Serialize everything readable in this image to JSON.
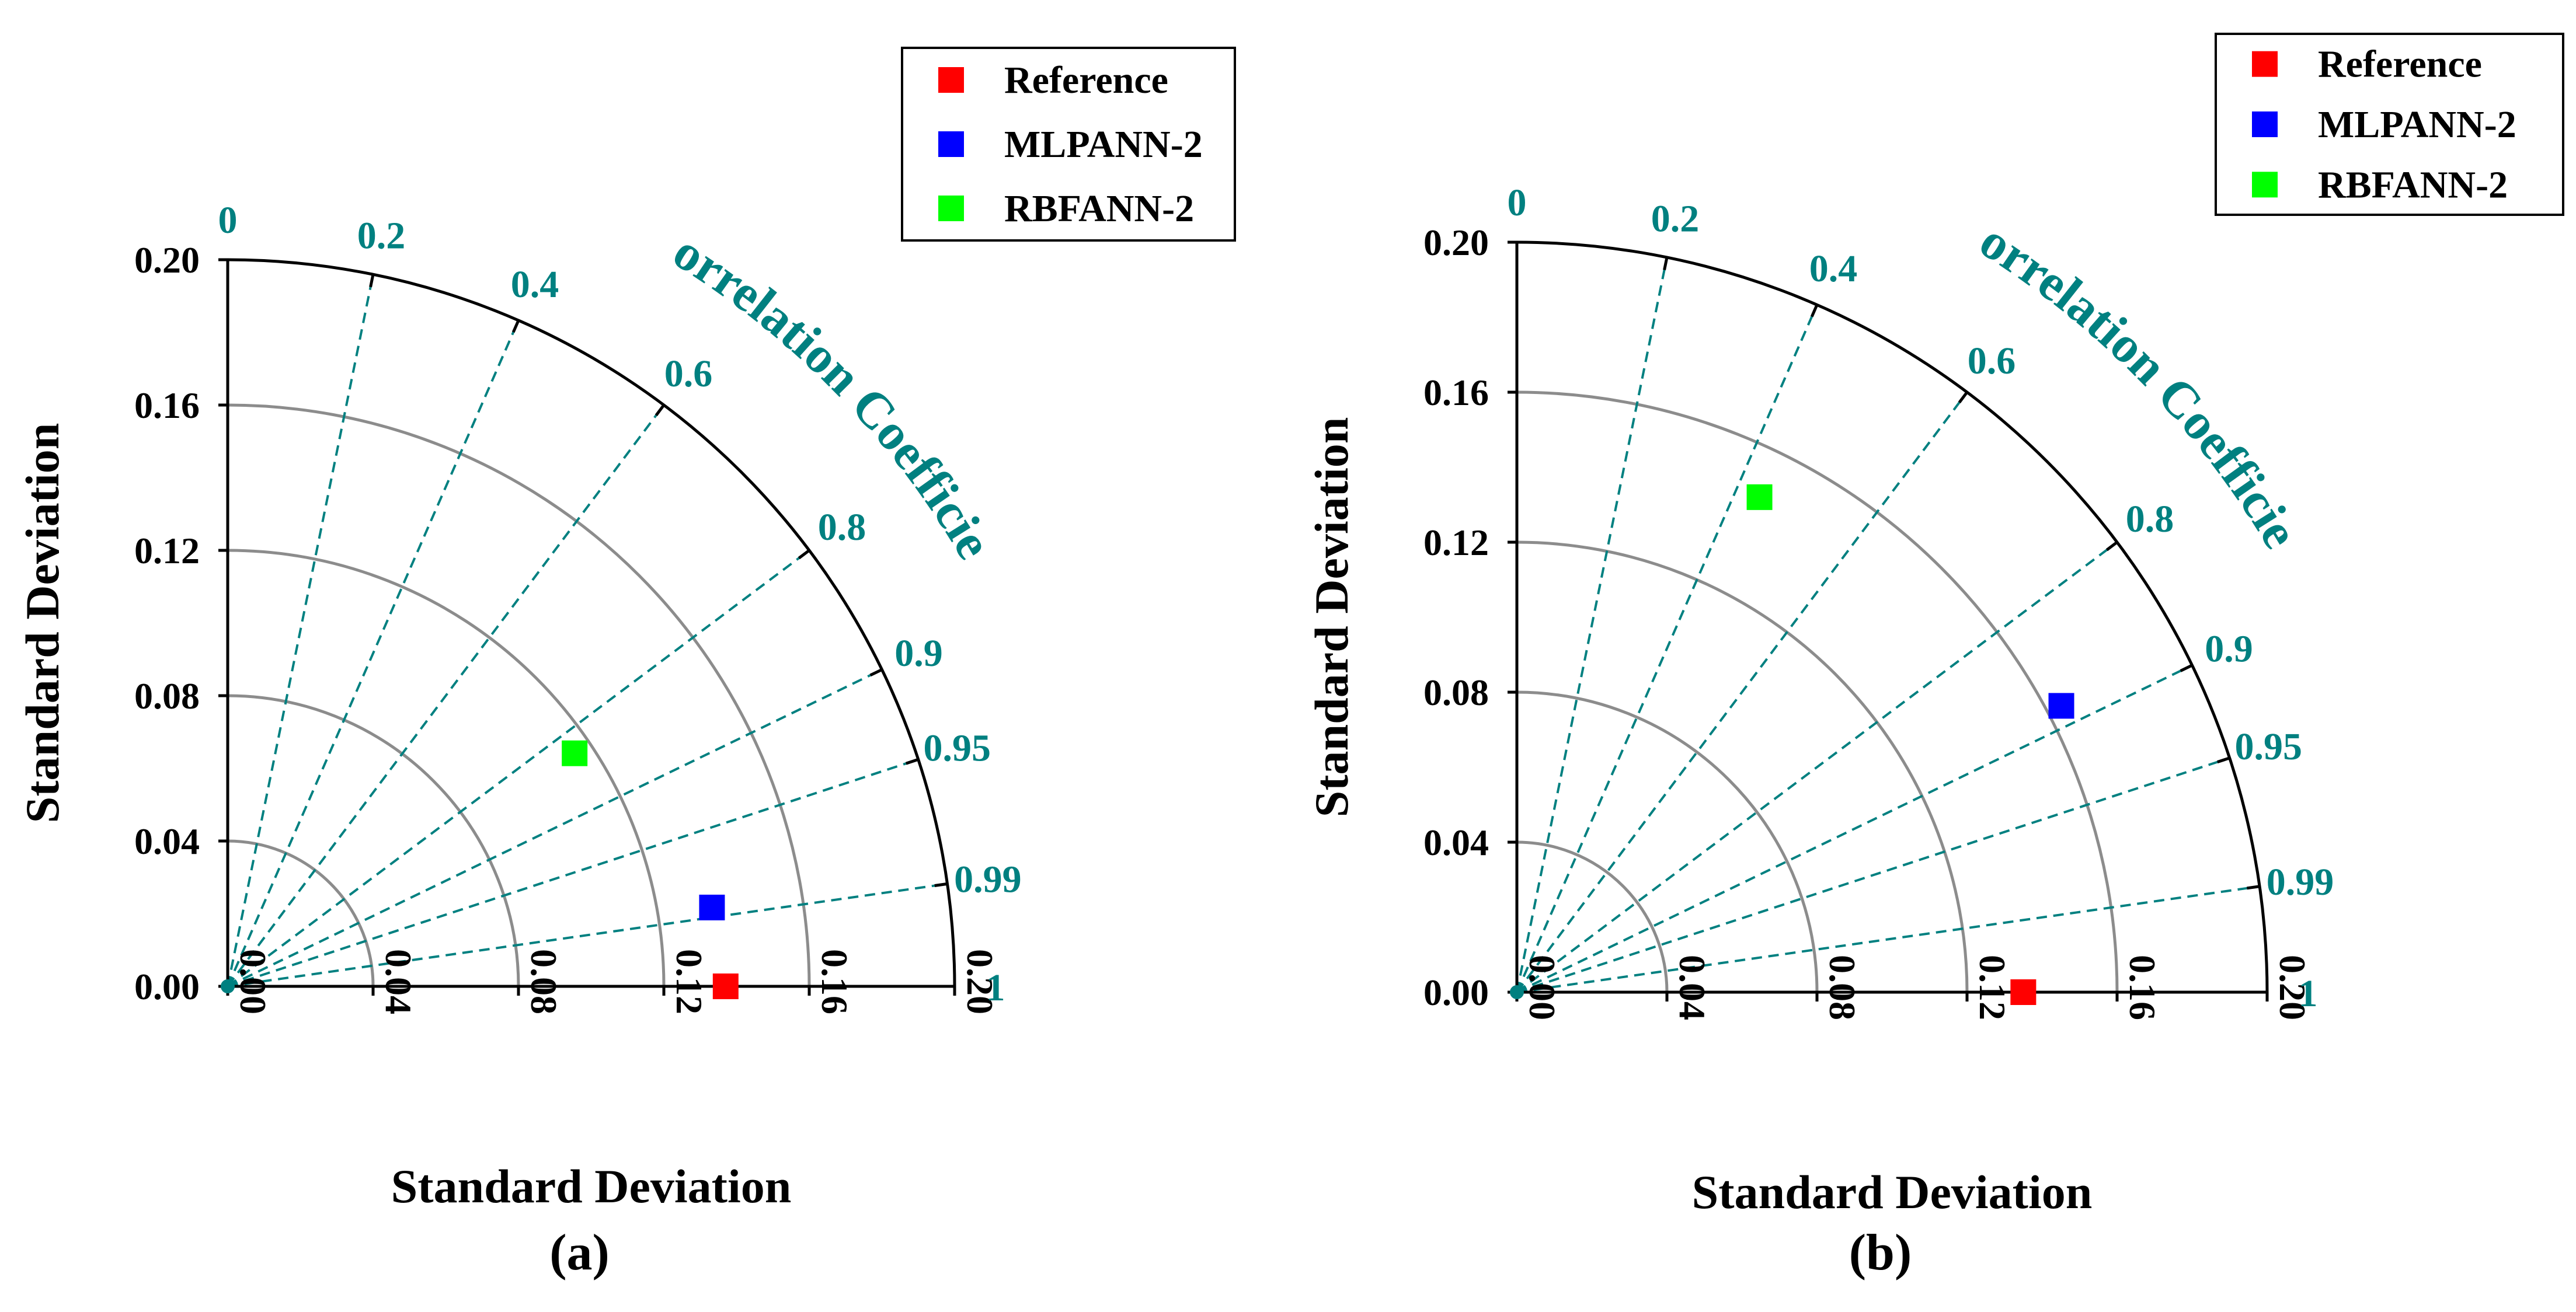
{
  "chart_data": [
    {
      "type": "taylor-diagram",
      "panel_label": "(a)",
      "xlabel": "Standard Deviation",
      "ylabel": "Standard Deviation",
      "correlation_label": "Correlation Coefficient",
      "std_range": [
        0,
        0.2
      ],
      "std_ticks": [
        "0.00",
        "0.04",
        "0.08",
        "0.12",
        "0.16",
        "0.20"
      ],
      "correlation_ticks": [
        "0",
        "0.2",
        "0.4",
        "0.6",
        "0.8",
        "0.9",
        "0.95",
        "0.99",
        "1"
      ],
      "legend_position": "top-right",
      "series": [
        {
          "name": "Reference",
          "color": "#ff0000",
          "std": 0.137,
          "correlation": 1.0
        },
        {
          "name": "MLPANN-2",
          "color": "#0000ff",
          "std": 0.135,
          "correlation": 0.987
        },
        {
          "name": "RBFANN-2",
          "color": "#00ff00",
          "std": 0.115,
          "correlation": 0.83
        }
      ]
    },
    {
      "type": "taylor-diagram",
      "panel_label": "(b)",
      "xlabel": "Standard Deviation",
      "ylabel": "Standard Deviation",
      "correlation_label": "Correlation Coefficient",
      "std_range": [
        0,
        0.2
      ],
      "std_ticks": [
        "0.00",
        "0.04",
        "0.08",
        "0.12",
        "0.16",
        "0.20"
      ],
      "correlation_ticks": [
        "0",
        "0.2",
        "0.4",
        "0.6",
        "0.8",
        "0.9",
        "0.95",
        "0.99",
        "1"
      ],
      "legend_position": "top-right",
      "series": [
        {
          "name": "Reference",
          "color": "#ff0000",
          "std": 0.135,
          "correlation": 1.0
        },
        {
          "name": "MLPANN-2",
          "color": "#0000ff",
          "std": 0.164,
          "correlation": 0.885
        },
        {
          "name": "RBFANN-2",
          "color": "#00ff00",
          "std": 0.147,
          "correlation": 0.44
        }
      ]
    }
  ]
}
